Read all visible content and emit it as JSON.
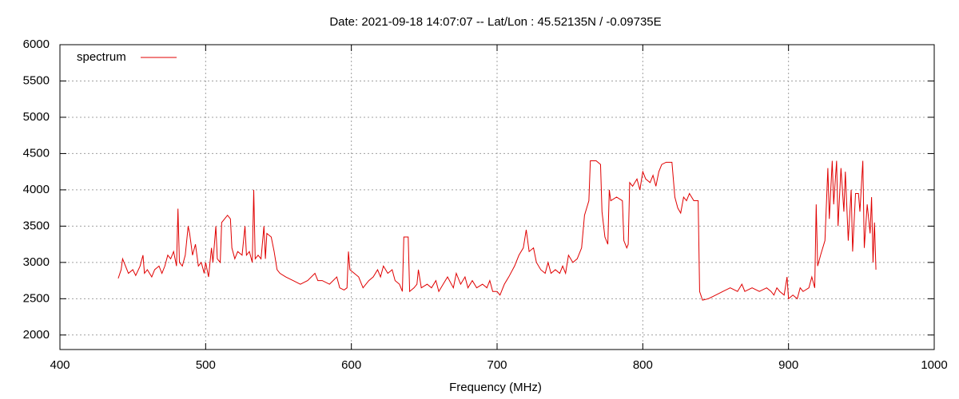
{
  "chart_data": {
    "type": "line",
    "title": "Date: 2021-09-18 14:07:07  --  Lat/Lon : 45.52135N / -0.09735E",
    "x_label": "Frequency (MHz)",
    "xlim": [
      400,
      1000
    ],
    "xticks": [
      400,
      500,
      600,
      700,
      800,
      900,
      1000
    ],
    "ylim": [
      1800,
      6000
    ],
    "yticks": [
      2000,
      2500,
      3000,
      3500,
      4000,
      4500,
      5000,
      5500,
      6000
    ],
    "grid": true,
    "legend": "top-left",
    "x": [
      440,
      442,
      443,
      445,
      447,
      450,
      452,
      455,
      457,
      458,
      460,
      463,
      465,
      468,
      470,
      472,
      474,
      476,
      478,
      480,
      481,
      482,
      484,
      486,
      488,
      489,
      491,
      493,
      495,
      497,
      499,
      500,
      502,
      504,
      505,
      507,
      508,
      510,
      511,
      513,
      515,
      517,
      518,
      520,
      522,
      525,
      527,
      528,
      530,
      532,
      533,
      534,
      536,
      538,
      540,
      541,
      542,
      545,
      547,
      549,
      551,
      555,
      560,
      565,
      570,
      575,
      577,
      580,
      585,
      590,
      592,
      595,
      597,
      598,
      599,
      602,
      605,
      608,
      612,
      615,
      618,
      620,
      622,
      625,
      628,
      630,
      633,
      635,
      636,
      639,
      640,
      643,
      645,
      646,
      648,
      652,
      655,
      658,
      660,
      663,
      666,
      670,
      672,
      675,
      678,
      680,
      683,
      686,
      690,
      693,
      695,
      697,
      700,
      702,
      705,
      708,
      712,
      715,
      718,
      720,
      722,
      725,
      727,
      730,
      733,
      735,
      737,
      740,
      743,
      745,
      747,
      749,
      752,
      755,
      758,
      760,
      763,
      764,
      768,
      771,
      772,
      774,
      776,
      777,
      778,
      782,
      786,
      787,
      789,
      790,
      791,
      793,
      796,
      798,
      800,
      802,
      805,
      807,
      809,
      811,
      813,
      816,
      820,
      822,
      824,
      826,
      828,
      830,
      832,
      835,
      838,
      839,
      841,
      845,
      850,
      855,
      860,
      865,
      868,
      870,
      875,
      880,
      885,
      888,
      890,
      892,
      894,
      897,
      899,
      900,
      903,
      906,
      908,
      910,
      914,
      916,
      918,
      919,
      920,
      922,
      925,
      927,
      928,
      930,
      931,
      933,
      934,
      936,
      938,
      939,
      941,
      943,
      944,
      946,
      948,
      949,
      951,
      952,
      954,
      956,
      957,
      958,
      959,
      960
    ],
    "series": [
      {
        "name": "spectrum",
        "color": "#e00000",
        "values": [
          2780,
          2900,
          3050,
          2950,
          2850,
          2900,
          2820,
          2950,
          3100,
          2850,
          2900,
          2800,
          2900,
          2950,
          2850,
          2950,
          3100,
          3050,
          3150,
          2950,
          3740,
          3000,
          2950,
          3100,
          3500,
          3400,
          3100,
          3250,
          2950,
          3000,
          2850,
          3000,
          2800,
          3200,
          3000,
          3500,
          3050,
          3000,
          3550,
          3600,
          3650,
          3600,
          3200,
          3050,
          3150,
          3100,
          3500,
          3100,
          3150,
          3000,
          4000,
          3050,
          3100,
          3050,
          3500,
          3050,
          3400,
          3350,
          3150,
          2900,
          2850,
          2800,
          2750,
          2700,
          2750,
          2850,
          2750,
          2750,
          2700,
          2800,
          2650,
          2620,
          2650,
          3150,
          2900,
          2850,
          2800,
          2650,
          2750,
          2800,
          2900,
          2800,
          2950,
          2850,
          2900,
          2750,
          2700,
          2600,
          3350,
          3350,
          2600,
          2650,
          2700,
          2900,
          2650,
          2700,
          2650,
          2750,
          2600,
          2700,
          2800,
          2650,
          2850,
          2700,
          2800,
          2650,
          2750,
          2650,
          2700,
          2650,
          2750,
          2600,
          2600,
          2550,
          2700,
          2800,
          2950,
          3100,
          3200,
          3450,
          3150,
          3200,
          3000,
          2900,
          2850,
          3000,
          2850,
          2900,
          2850,
          2950,
          2850,
          3100,
          3000,
          3050,
          3200,
          3650,
          3850,
          4400,
          4400,
          4350,
          3700,
          3350,
          3250,
          4000,
          3850,
          3900,
          3850,
          3300,
          3200,
          3250,
          4100,
          4050,
          4150,
          4000,
          4250,
          4150,
          4100,
          4200,
          4050,
          4250,
          4350,
          4380,
          4380,
          3900,
          3750,
          3680,
          3900,
          3850,
          3950,
          3850,
          3850,
          2600,
          2480,
          2500,
          2550,
          2600,
          2650,
          2600,
          2700,
          2600,
          2650,
          2600,
          2650,
          2600,
          2550,
          2650,
          2600,
          2550,
          2800,
          2500,
          2550,
          2500,
          2650,
          2600,
          2650,
          2800,
          2650,
          3800,
          2950,
          3100,
          3300,
          4300,
          3600,
          4400,
          3800,
          4400,
          3500,
          4300,
          3700,
          4250,
          3300,
          4000,
          3150,
          3950,
          3950,
          3700,
          4400,
          3200,
          3800,
          3400,
          3900,
          3000,
          3550,
          2900
        ]
      }
    ]
  }
}
